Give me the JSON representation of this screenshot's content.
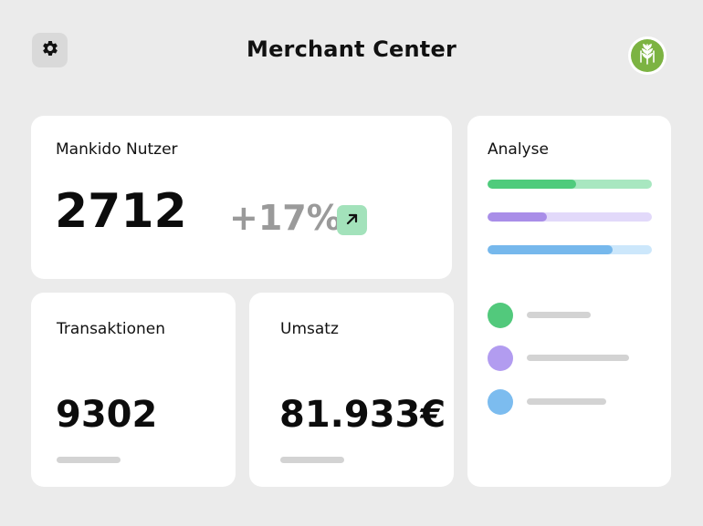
{
  "header": {
    "title": "Merchant Center",
    "settings_icon": "gear-icon",
    "avatar_icon": "wheat-icon"
  },
  "users_card": {
    "label": "Mankido Nutzer",
    "value": "2712",
    "delta": "+17%",
    "trend_icon": "arrow-up-right-icon"
  },
  "transactions_card": {
    "label": "Transaktionen",
    "value": "9302"
  },
  "revenue_card": {
    "label": "Umsatz",
    "value": "81.933€"
  },
  "analysis_card": {
    "label": "Analyse",
    "bars": [
      {
        "fill": 0.54,
        "color": "#4fcb7c",
        "track": "#a8e7c0"
      },
      {
        "fill": 0.36,
        "color": "#a98ee8",
        "track": "#e2d9fa"
      },
      {
        "fill": 0.76,
        "color": "#76b8ec",
        "track": "#cce7fb"
      }
    ],
    "legend": [
      {
        "color": "#52c97c"
      },
      {
        "color": "#b29cf0"
      },
      {
        "color": "#7cbcef"
      }
    ]
  }
}
